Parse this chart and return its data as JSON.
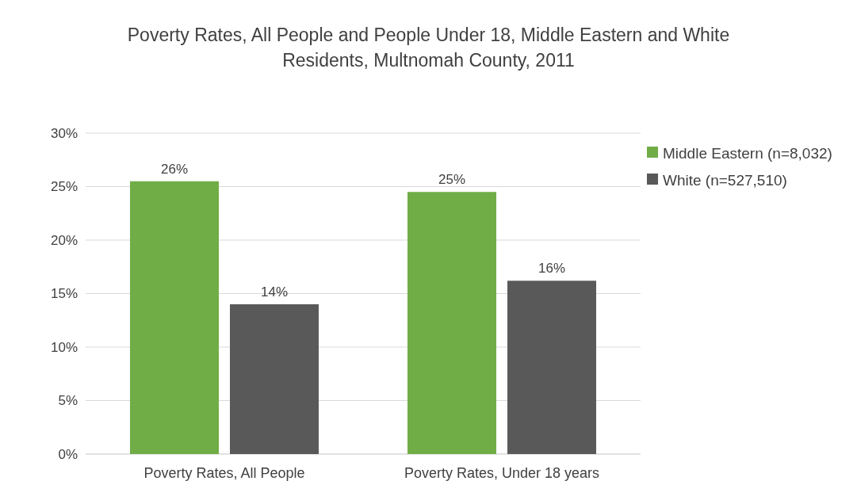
{
  "chart_data": {
    "type": "bar",
    "title": "Poverty Rates, All People and People Under 18, Middle Eastern and White Residents, Multnomah County, 2011",
    "categories": [
      "Poverty Rates, All People",
      "Poverty Rates, Under 18 years"
    ],
    "series": [
      {
        "name": "Middle Eastern (n=8,032)",
        "color": "#70ad47",
        "values": [
          25.5,
          24.5
        ],
        "value_labels": [
          "26%",
          "25%"
        ]
      },
      {
        "name": "White (n=527,510)",
        "color": "#595959",
        "values": [
          14,
          16.2
        ],
        "value_labels": [
          "14%",
          "16%"
        ]
      }
    ],
    "ylim": [
      0,
      30
    ],
    "yticks": [
      {
        "value": 0,
        "label": "0%"
      },
      {
        "value": 5,
        "label": "5%"
      },
      {
        "value": 10,
        "label": "10%"
      },
      {
        "value": 15,
        "label": "15%"
      },
      {
        "value": 20,
        "label": "20%"
      },
      {
        "value": 25,
        "label": "25%"
      },
      {
        "value": 30,
        "label": "30%"
      }
    ],
    "grid": "y",
    "legend": "top right"
  }
}
